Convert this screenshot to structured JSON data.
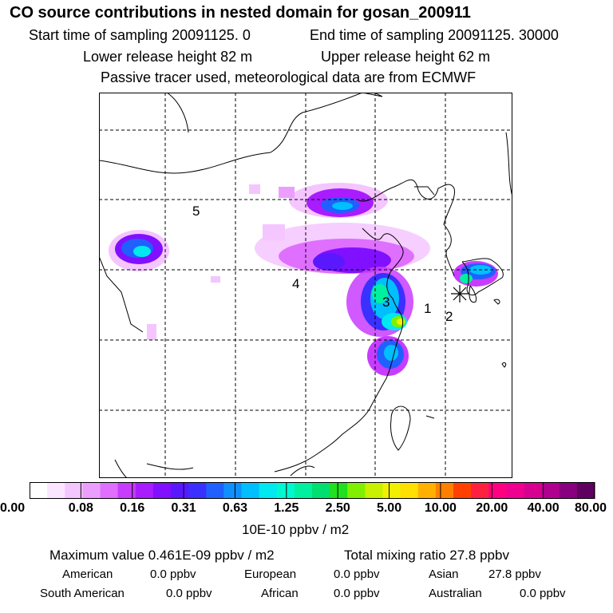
{
  "header": {
    "title": "CO  source contributions in nested domain for gosan_200911",
    "start_time": "Start time of sampling 20091125.     0",
    "end_time": "End time of sampling 20091125. 30000",
    "lower_release": "Lower release height   82 m",
    "upper_release": "Upper release height   62 m",
    "tracer_note": "Passive tracer used, meteorological data are from ECMWF"
  },
  "map": {
    "region_labels": [
      "5",
      "4",
      "3",
      "1",
      "2"
    ],
    "receptor_marker": "asterisk-marker"
  },
  "colorbar": {
    "tick_labels": [
      "0.00",
      "0.08",
      "0.16",
      "0.31",
      "0.63",
      "1.25",
      "2.50",
      "5.00",
      "10.00",
      "20.00",
      "40.00",
      "80.00"
    ],
    "unit": "10E-10 ppbv / m2",
    "colors": [
      "#ffffff",
      "#fbe6ff",
      "#f4c6ff",
      "#ec9eff",
      "#df6fff",
      "#c83cff",
      "#a81cff",
      "#8010ff",
      "#5a18ff",
      "#3a30ff",
      "#2060ff",
      "#1090ff",
      "#00bfff",
      "#00e8f0",
      "#00f8d0",
      "#00f0a0",
      "#00e070",
      "#20e020",
      "#80f000",
      "#c8f000",
      "#f0f000",
      "#ffe000",
      "#ffb000",
      "#ff8000",
      "#ff4000",
      "#ff2040",
      "#ff0080",
      "#f00090",
      "#d80090",
      "#b00090",
      "#880080",
      "#600060"
    ]
  },
  "stats": {
    "max_value": "Maximum value  0.461E-09 ppbv / m2",
    "total_mixing": "Total mixing ratio       27.8 ppbv",
    "american_label": "American",
    "american_value": "0.0 ppbv",
    "european_label": "European",
    "european_value": "0.0 ppbv",
    "asian_label": "Asian",
    "asian_value": "27.8 ppbv",
    "south_american_label": "South American",
    "south_american_value": "0.0 ppbv",
    "african_label": "African",
    "african_value": "0.0 ppbv",
    "australian_label": "Australian",
    "australian_value": "0.0 ppbv"
  }
}
